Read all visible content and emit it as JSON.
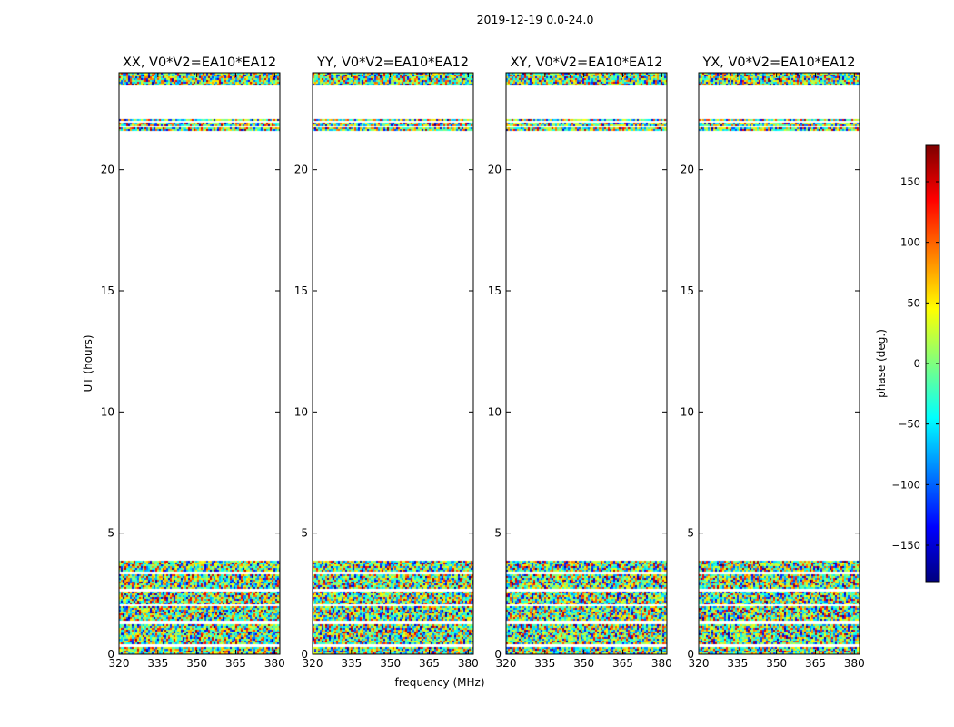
{
  "figure": {
    "suptitle": "2019-12-19 0.0-24.0"
  },
  "chart_data": {
    "type": "heatmap",
    "quantity": "phase",
    "xlabel": "frequency (MHz)",
    "ylabel": "UT (hours)",
    "xlim": [
      320,
      382
    ],
    "ylim": [
      0,
      24
    ],
    "xticks": [
      "320",
      "335",
      "350",
      "365",
      "380"
    ],
    "xtick_values": [
      320,
      335,
      350,
      365,
      380
    ],
    "yticks": [
      "0",
      "5",
      "10",
      "15",
      "20"
    ],
    "ytick_values": [
      0,
      5,
      10,
      15,
      20
    ],
    "panels": [
      {
        "title": "XX, V0*V2=EA10*EA12"
      },
      {
        "title": "YY, V0*V2=EA10*EA12"
      },
      {
        "title": "XY, V0*V2=EA10*EA12"
      },
      {
        "title": "YX, V0*V2=EA10*EA12"
      }
    ],
    "data_time_bands_hours": [
      [
        0.05,
        0.3
      ],
      [
        0.4,
        1.25
      ],
      [
        1.4,
        2.0
      ],
      [
        2.1,
        2.6
      ],
      [
        2.75,
        3.3
      ],
      [
        3.4,
        3.85
      ],
      [
        21.6,
        21.75
      ],
      [
        21.8,
        21.95
      ],
      [
        22.0,
        22.1
      ],
      [
        23.5,
        24.0
      ]
    ],
    "colorbar": {
      "label": "phase (deg.)",
      "range": [
        -180,
        180
      ],
      "ticks": [
        -150,
        -100,
        -50,
        0,
        50,
        100,
        150
      ],
      "tick_labels": [
        "−150",
        "−100",
        "−50",
        "0",
        "50",
        "100",
        "150"
      ],
      "colormap": "jet",
      "stops": [
        "#00007f",
        "#0000ff",
        "#007fff",
        "#00ffff",
        "#7fff7f",
        "#ffff00",
        "#ff7f00",
        "#ff0000",
        "#7f0000"
      ]
    }
  }
}
